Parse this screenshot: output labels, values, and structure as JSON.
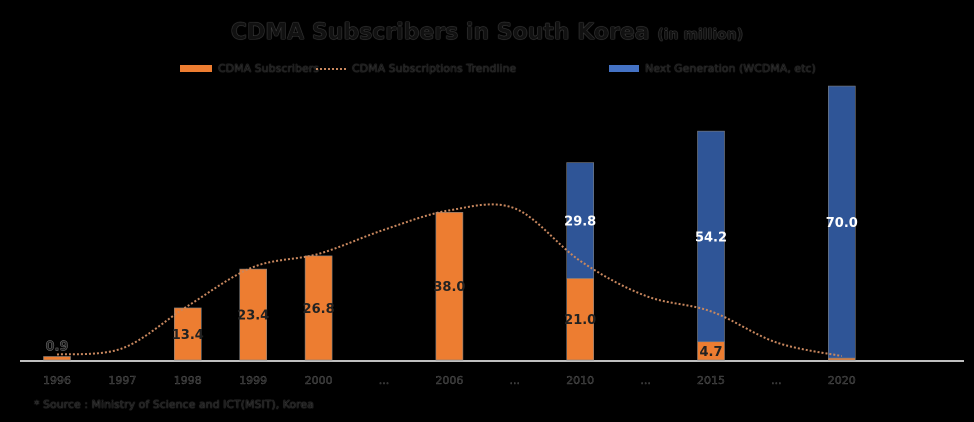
{
  "chart_data": {
    "type": "bar",
    "title": "CDMA Subscribers in South Korea",
    "title_unit": "(in million)",
    "categories": [
      "1996",
      "1997",
      "1998",
      "1999",
      "2000",
      "...",
      "2006",
      "...",
      "2010",
      "...",
      "2015",
      "...",
      "2020"
    ],
    "series": [
      {
        "name": "CDMA Subscribers",
        "color": "#ed7d31",
        "values": [
          0.9,
          null,
          13.4,
          23.4,
          26.8,
          null,
          38.0,
          null,
          21.0,
          null,
          4.7,
          null,
          0.5
        ]
      },
      {
        "name": "Next Generation (WCDMA, etc)",
        "color": "#2f5597",
        "values": [
          null,
          null,
          null,
          null,
          null,
          null,
          null,
          null,
          29.8,
          null,
          54.2,
          null,
          70.0
        ]
      }
    ],
    "trendline": {
      "name": "CDMA Subscriptions Trendline",
      "color": "#c8875e",
      "style": "dotted",
      "values": [
        0.9,
        2.5,
        13.4,
        23.4,
        26.8,
        33,
        38.0,
        38.5,
        25,
        16,
        12,
        4,
        0.5
      ]
    },
    "stacked": true,
    "xlabel": "",
    "ylabel": "",
    "ylim": [
      0,
      70
    ],
    "grid": false,
    "legend_position": "top"
  },
  "source_note": "* Source : Ministry of Science and ICT(MSIT), Korea"
}
